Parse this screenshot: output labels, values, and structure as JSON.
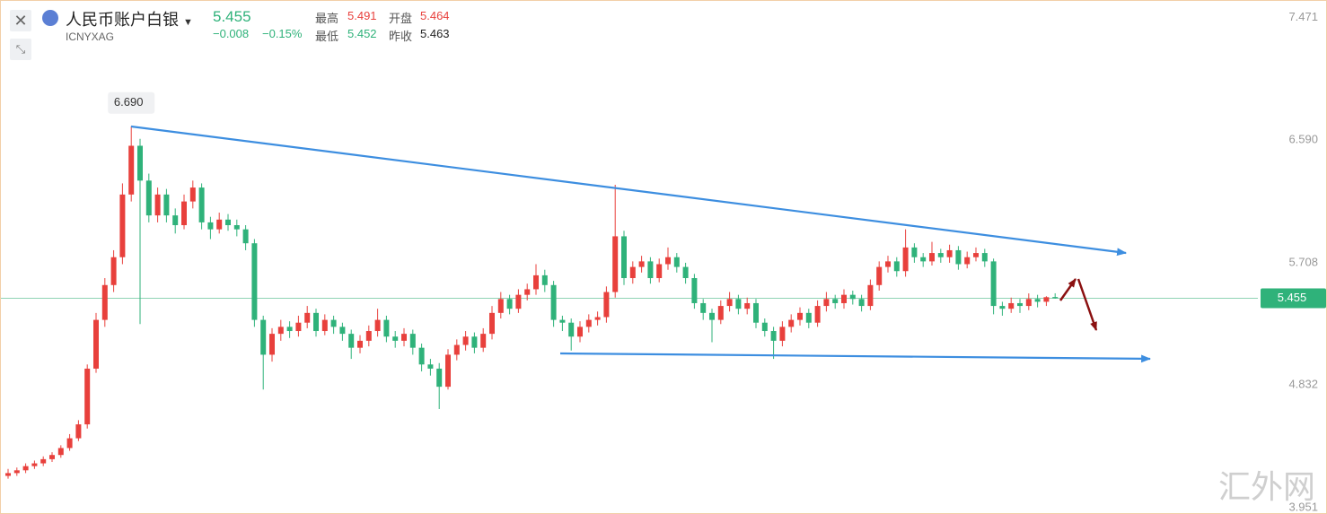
{
  "header": {
    "title": "人民币账户白银",
    "code": "ICNYXAG",
    "price": "5.455",
    "change": "−0.008",
    "change_pct": "−0.15%",
    "high_label": "最高",
    "high": "5.491",
    "open_label": "开盘",
    "open": "5.464",
    "low_label": "最低",
    "low": "5.452",
    "prev_label": "昨收",
    "prev": "5.463"
  },
  "watermark": "汇外网",
  "chart_data": {
    "type": "candlestick",
    "ylim": [
      3.9,
      7.59
    ],
    "yticks": [
      7.471,
      {
        "value": 6.59,
        "label": "6.590"
      },
      5.708,
      4.832,
      3.951
    ],
    "up_color": "#e8403c",
    "down_color": "#2fb27a",
    "last_line_color": "#8fd3b4",
    "peak_label": "6.690",
    "price_tag": "5.455",
    "candles": [
      [
        4.18,
        4.23,
        4.16,
        4.2
      ],
      [
        4.2,
        4.24,
        4.18,
        4.22
      ],
      [
        4.22,
        4.27,
        4.2,
        4.25
      ],
      [
        4.25,
        4.29,
        4.23,
        4.27
      ],
      [
        4.27,
        4.32,
        4.25,
        4.3
      ],
      [
        4.3,
        4.35,
        4.28,
        4.33
      ],
      [
        4.33,
        4.4,
        4.31,
        4.38
      ],
      [
        4.38,
        4.48,
        4.36,
        4.45
      ],
      [
        4.45,
        4.58,
        4.43,
        4.55
      ],
      [
        4.55,
        4.98,
        4.52,
        4.95
      ],
      [
        4.95,
        5.35,
        4.92,
        5.3
      ],
      [
        5.3,
        5.6,
        5.25,
        5.55
      ],
      [
        5.55,
        5.8,
        5.5,
        5.75
      ],
      [
        5.75,
        6.28,
        5.7,
        6.2
      ],
      [
        6.2,
        6.69,
        6.15,
        6.55
      ],
      [
        6.55,
        6.6,
        5.27,
        6.3
      ],
      [
        6.3,
        6.35,
        6.0,
        6.05
      ],
      [
        6.05,
        6.25,
        6.0,
        6.2
      ],
      [
        6.2,
        6.24,
        6.0,
        6.05
      ],
      [
        6.05,
        6.1,
        5.92,
        5.98
      ],
      [
        5.98,
        6.2,
        5.95,
        6.15
      ],
      [
        6.15,
        6.3,
        6.1,
        6.25
      ],
      [
        6.25,
        6.28,
        5.95,
        6.0
      ],
      [
        6.0,
        6.04,
        5.88,
        5.95
      ],
      [
        5.95,
        6.07,
        5.92,
        6.02
      ],
      [
        6.02,
        6.06,
        5.94,
        5.98
      ],
      [
        5.98,
        6.02,
        5.9,
        5.95
      ],
      [
        5.95,
        5.98,
        5.8,
        5.85
      ],
      [
        5.85,
        5.88,
        5.25,
        5.3
      ],
      [
        5.3,
        5.33,
        4.8,
        5.05
      ],
      [
        5.05,
        5.24,
        5.0,
        5.2
      ],
      [
        5.2,
        5.3,
        5.15,
        5.25
      ],
      [
        5.25,
        5.29,
        5.17,
        5.22
      ],
      [
        5.22,
        5.33,
        5.18,
        5.28
      ],
      [
        5.28,
        5.4,
        5.24,
        5.35
      ],
      [
        5.35,
        5.38,
        5.18,
        5.22
      ],
      [
        5.22,
        5.34,
        5.19,
        5.3
      ],
      [
        5.3,
        5.33,
        5.2,
        5.25
      ],
      [
        5.25,
        5.28,
        5.15,
        5.2
      ],
      [
        5.2,
        5.23,
        5.02,
        5.1
      ],
      [
        5.1,
        5.19,
        5.06,
        5.15
      ],
      [
        5.15,
        5.26,
        5.11,
        5.22
      ],
      [
        5.22,
        5.38,
        5.18,
        5.3
      ],
      [
        5.3,
        5.33,
        5.14,
        5.18
      ],
      [
        5.18,
        5.22,
        5.1,
        5.15
      ],
      [
        5.15,
        5.24,
        5.11,
        5.2
      ],
      [
        5.2,
        5.23,
        5.05,
        5.1
      ],
      [
        5.1,
        5.13,
        4.93,
        4.98
      ],
      [
        4.98,
        5.02,
        4.9,
        4.95
      ],
      [
        4.95,
        4.99,
        4.66,
        4.82
      ],
      [
        4.82,
        5.09,
        4.8,
        5.05
      ],
      [
        5.05,
        5.16,
        5.01,
        5.12
      ],
      [
        5.12,
        5.22,
        5.08,
        5.18
      ],
      [
        5.18,
        5.21,
        5.06,
        5.1
      ],
      [
        5.1,
        5.24,
        5.07,
        5.2
      ],
      [
        5.2,
        5.4,
        5.16,
        5.35
      ],
      [
        5.35,
        5.5,
        5.31,
        5.45
      ],
      [
        5.45,
        5.48,
        5.34,
        5.38
      ],
      [
        5.38,
        5.52,
        5.35,
        5.48
      ],
      [
        5.48,
        5.56,
        5.44,
        5.52
      ],
      [
        5.52,
        5.7,
        5.48,
        5.62
      ],
      [
        5.62,
        5.66,
        5.5,
        5.55
      ],
      [
        5.55,
        5.58,
        5.25,
        5.3
      ],
      [
        5.3,
        5.33,
        5.22,
        5.28
      ],
      [
        5.28,
        5.31,
        5.08,
        5.18
      ],
      [
        5.18,
        5.29,
        5.14,
        5.25
      ],
      [
        5.25,
        5.34,
        5.21,
        5.3
      ],
      [
        5.3,
        5.36,
        5.26,
        5.32
      ],
      [
        5.32,
        5.54,
        5.28,
        5.5
      ],
      [
        5.5,
        6.27,
        5.46,
        5.9
      ],
      [
        5.9,
        5.94,
        5.55,
        5.6
      ],
      [
        5.6,
        5.72,
        5.56,
        5.68
      ],
      [
        5.68,
        5.76,
        5.64,
        5.72
      ],
      [
        5.72,
        5.75,
        5.56,
        5.6
      ],
      [
        5.6,
        5.74,
        5.57,
        5.7
      ],
      [
        5.7,
        5.82,
        5.66,
        5.75
      ],
      [
        5.75,
        5.78,
        5.64,
        5.68
      ],
      [
        5.68,
        5.71,
        5.56,
        5.6
      ],
      [
        5.6,
        5.63,
        5.38,
        5.42
      ],
      [
        5.42,
        5.45,
        5.3,
        5.35
      ],
      [
        5.35,
        5.38,
        5.14,
        5.3
      ],
      [
        5.3,
        5.44,
        5.27,
        5.4
      ],
      [
        5.4,
        5.5,
        5.36,
        5.45
      ],
      [
        5.45,
        5.48,
        5.34,
        5.38
      ],
      [
        5.38,
        5.46,
        5.34,
        5.42
      ],
      [
        5.42,
        5.45,
        5.24,
        5.28
      ],
      [
        5.28,
        5.31,
        5.18,
        5.22
      ],
      [
        5.22,
        5.25,
        5.02,
        5.15
      ],
      [
        5.15,
        5.29,
        5.11,
        5.25
      ],
      [
        5.25,
        5.34,
        5.21,
        5.3
      ],
      [
        5.3,
        5.39,
        5.26,
        5.35
      ],
      [
        5.35,
        5.38,
        5.24,
        5.28
      ],
      [
        5.28,
        5.44,
        5.25,
        5.4
      ],
      [
        5.4,
        5.5,
        5.36,
        5.45
      ],
      [
        5.45,
        5.48,
        5.38,
        5.42
      ],
      [
        5.42,
        5.52,
        5.38,
        5.48
      ],
      [
        5.48,
        5.51,
        5.41,
        5.45
      ],
      [
        5.45,
        5.48,
        5.36,
        5.4
      ],
      [
        5.4,
        5.59,
        5.37,
        5.55
      ],
      [
        5.55,
        5.72,
        5.51,
        5.68
      ],
      [
        5.68,
        5.76,
        5.64,
        5.72
      ],
      [
        5.72,
        5.75,
        5.61,
        5.65
      ],
      [
        5.65,
        5.95,
        5.61,
        5.82
      ],
      [
        5.82,
        5.85,
        5.71,
        5.75
      ],
      [
        5.75,
        5.78,
        5.68,
        5.72
      ],
      [
        5.72,
        5.86,
        5.69,
        5.78
      ],
      [
        5.78,
        5.81,
        5.71,
        5.75
      ],
      [
        5.75,
        5.84,
        5.71,
        5.8
      ],
      [
        5.8,
        5.83,
        5.66,
        5.7
      ],
      [
        5.7,
        5.79,
        5.67,
        5.75
      ],
      [
        5.75,
        5.82,
        5.72,
        5.78
      ],
      [
        5.78,
        5.81,
        5.68,
        5.72
      ],
      [
        5.72,
        5.74,
        5.34,
        5.4
      ],
      [
        5.4,
        5.43,
        5.33,
        5.38
      ],
      [
        5.38,
        5.46,
        5.35,
        5.42
      ],
      [
        5.42,
        5.45,
        5.35,
        5.4
      ],
      [
        5.4,
        5.49,
        5.37,
        5.45
      ],
      [
        5.45,
        5.48,
        5.39,
        5.43
      ],
      [
        5.43,
        5.47,
        5.4,
        5.463
      ],
      [
        5.464,
        5.491,
        5.452,
        5.455
      ]
    ]
  }
}
